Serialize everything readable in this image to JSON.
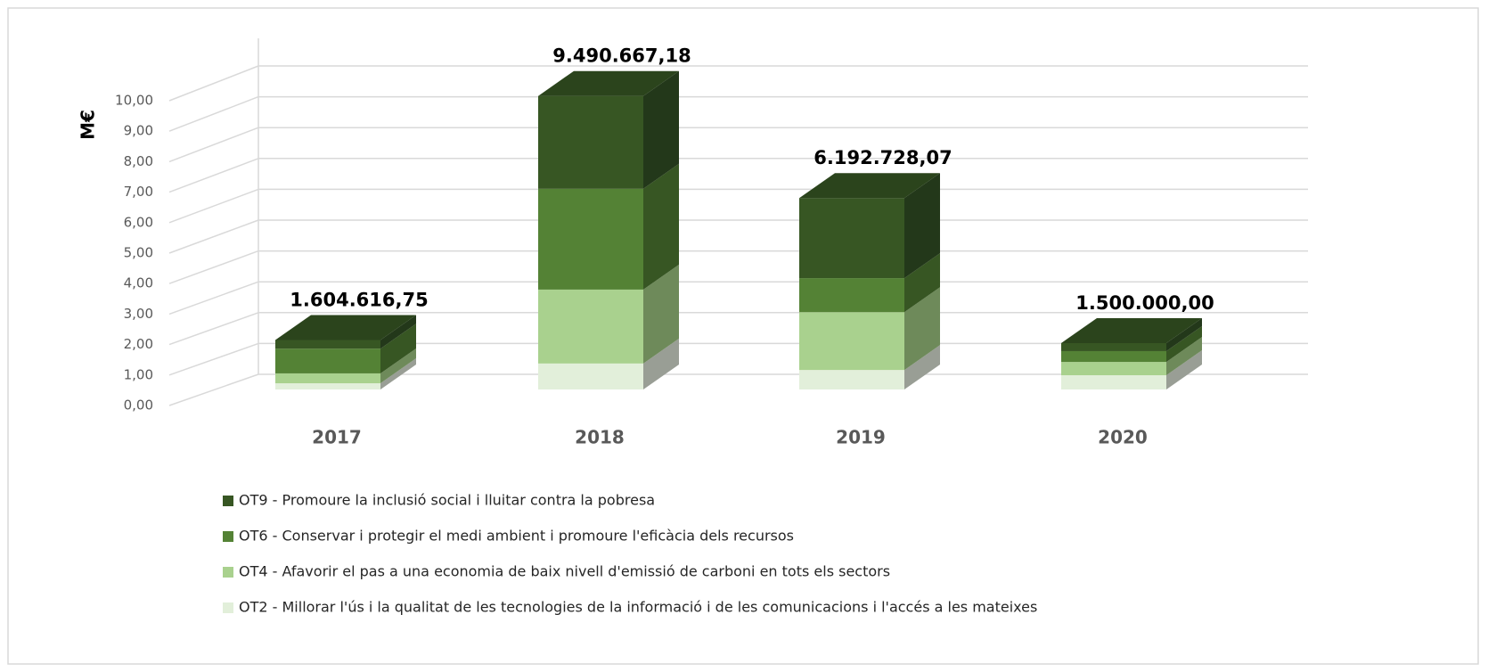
{
  "chart_data": {
    "type": "bar3d_stacked",
    "y_axis_label": "M€",
    "categories": [
      "2017",
      "2018",
      "2019",
      "2020"
    ],
    "series": [
      {
        "name": "OT9 - Promoure la inclusió social i lluitar contra la pobresa",
        "color": "#375623",
        "side_color": "#23381a",
        "values": [
          0.28,
          3.0,
          2.59,
          0.26
        ]
      },
      {
        "name": "OT6 - Conservar i protegir el medi ambient i promoure l'eficàcia dels recursos",
        "color": "#548235",
        "side_color": "#375623",
        "values": [
          0.8,
          3.26,
          1.1,
          0.35
        ]
      },
      {
        "name": "OT4 - Afavorir el pas a una economia de baix nivell d'emissió de carboni en tots els sectors",
        "color": "#a9d18e",
        "side_color": "#6e8a5a",
        "values": [
          0.32,
          2.39,
          1.87,
          0.43
        ]
      },
      {
        "name": "OT2 - Millorar l'ús i la qualitat de les tecnologies de la informació i de les comunicacions i l'accés a les mateixes",
        "color": "#e2efda",
        "side_color": "#999e95",
        "values": [
          0.2,
          0.84,
          0.63,
          0.46
        ]
      }
    ],
    "totals": {
      "values": [
        1.60461675,
        9.49066718,
        6.19272807,
        1.5
      ],
      "value_labels": [
        "1.604.616,75",
        "9.490.667,18",
        "6.192.728,07",
        "1.500.000,00"
      ]
    },
    "ylim": [
      0,
      10
    ],
    "yticks": [
      {
        "value": 0,
        "label": "0,00"
      },
      {
        "value": 1,
        "label": "1,00"
      },
      {
        "value": 2,
        "label": "2,00"
      },
      {
        "value": 3,
        "label": "3,00"
      },
      {
        "value": 4,
        "label": "4,00"
      },
      {
        "value": 5,
        "label": "5,00"
      },
      {
        "value": 6,
        "label": "6,00"
      },
      {
        "value": 7,
        "label": "7,00"
      },
      {
        "value": 8,
        "label": "8,00"
      },
      {
        "value": 9,
        "label": "9,00"
      },
      {
        "value": 10,
        "label": "10,00"
      }
    ],
    "grid": true
  }
}
